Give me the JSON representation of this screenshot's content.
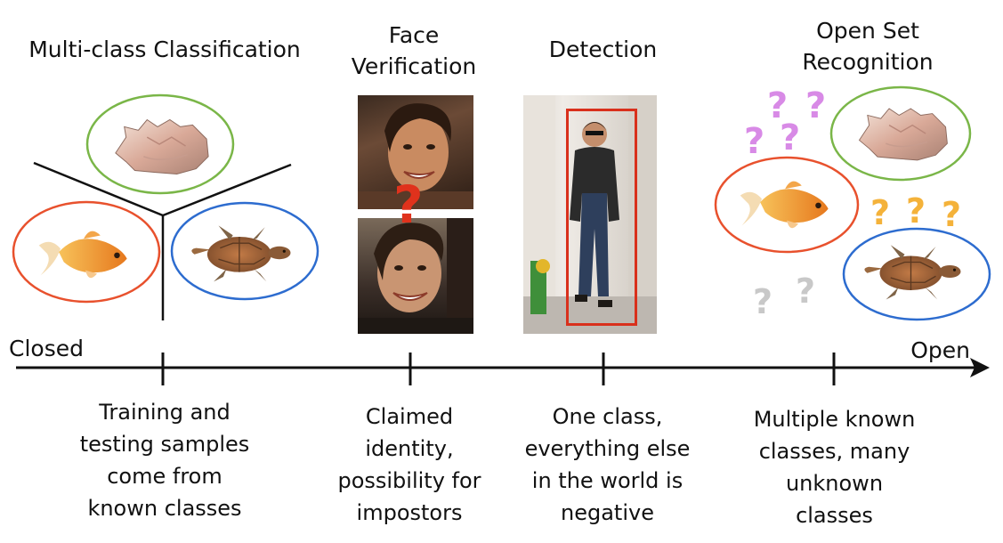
{
  "headings": {
    "multiclass": "Multi-class Classification",
    "face_line1": "Face",
    "face_line2": "Verification",
    "detection": "Detection",
    "openset_line1": "Open Set",
    "openset_line2": "Recognition"
  },
  "axis": {
    "closed": "Closed",
    "open": "Open"
  },
  "descriptions": {
    "multiclass": [
      "Training and",
      "testing samples",
      "come from",
      "known classes"
    ],
    "face": [
      "Claimed",
      "identity,",
      "possibility for",
      "impostors"
    ],
    "detection": [
      "One class,",
      "everything else",
      "in the world is",
      "negative"
    ],
    "openset": [
      "Multiple known",
      "classes, many",
      "unknown",
      "classes"
    ]
  },
  "question_mark": "?",
  "colors": {
    "green_class": "#7ab648",
    "red_class": "#e8512d",
    "blue_class": "#2d6ccf",
    "purple_unknown": "#d88ae6",
    "orange_unknown": "#f4b23a",
    "gray_unknown": "#c8c8c8",
    "red_question": "#e0321c",
    "detection_box": "#d9301c"
  },
  "icons": [
    "shell-icon",
    "goldfish-icon",
    "turtle-icon",
    "face-photo",
    "pedestrian-photo"
  ]
}
